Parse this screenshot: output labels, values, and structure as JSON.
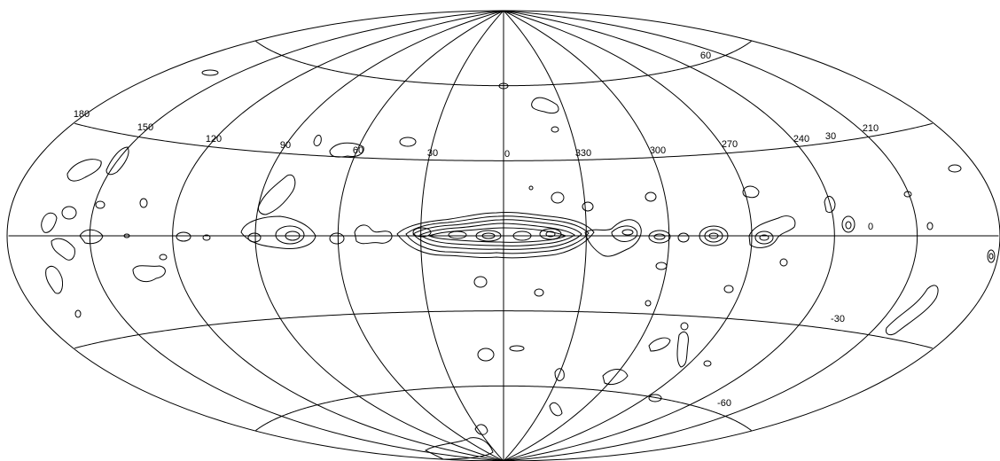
{
  "map": {
    "projection": "Aitoff",
    "coordinate_system": "galactic",
    "center_longitude": 0,
    "longitude_labels": [
      "180",
      "150",
      "120",
      "90",
      "60",
      "30",
      "0",
      "330",
      "300",
      "270",
      "240",
      "210"
    ],
    "latitude_labels_north": [
      "60",
      "30",
      "0"
    ],
    "latitude_labels_south": [
      "-30",
      "-60"
    ],
    "meridian_step_deg": 30,
    "parallel_step_deg": 30,
    "contour_map_of": "Galactic plane emission"
  }
}
